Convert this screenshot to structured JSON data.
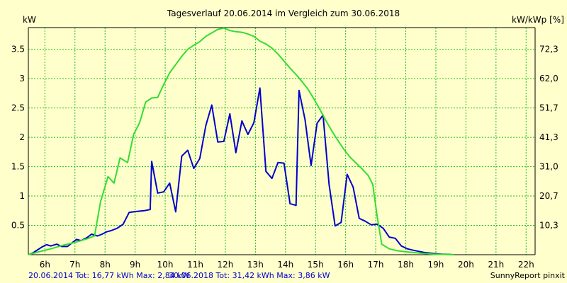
{
  "chart_data": {
    "type": "line",
    "title": "Tagesverlauf 20.06.2014 im Vergleich zum 30.06.2018",
    "ylabel_left": "kW",
    "ylabel_right": "kW/kWp [%]",
    "x_ticks": [
      "6h",
      "7h",
      "8h",
      "9h",
      "10h",
      "11h",
      "12h",
      "13h",
      "14h",
      "15h",
      "16h",
      "17h",
      "18h",
      "19h",
      "20h",
      "21h",
      "22h"
    ],
    "x_tick_values": [
      6,
      7,
      8,
      9,
      10,
      11,
      12,
      13,
      14,
      15,
      16,
      17,
      18,
      19,
      20,
      21,
      22
    ],
    "xlim": [
      5.45,
      22.3
    ],
    "y_ticks": [
      "0.5",
      "1",
      "1.5",
      "2",
      "2.5",
      "3",
      "3.5"
    ],
    "y_tick_values": [
      0.5,
      1,
      1.5,
      2,
      2.5,
      3,
      3.5
    ],
    "y_right_ticks": [
      "10,3",
      "20,7",
      "31,0",
      "41,3",
      "51,7",
      "62,0",
      "72,3"
    ],
    "ylim": [
      0,
      3.87
    ],
    "grid": true,
    "series": [
      {
        "name": "20.06.2014",
        "color": "#0000cc",
        "points": [
          [
            5.45,
            0
          ],
          [
            5.6,
            0.03
          ],
          [
            5.75,
            0.08
          ],
          [
            5.9,
            0.13
          ],
          [
            6.05,
            0.17
          ],
          [
            6.2,
            0.15
          ],
          [
            6.4,
            0.18
          ],
          [
            6.55,
            0.14
          ],
          [
            6.75,
            0.14
          ],
          [
            6.9,
            0.2
          ],
          [
            7.05,
            0.26
          ],
          [
            7.2,
            0.24
          ],
          [
            7.4,
            0.29
          ],
          [
            7.55,
            0.35
          ],
          [
            7.75,
            0.32
          ],
          [
            7.9,
            0.35
          ],
          [
            8.05,
            0.39
          ],
          [
            8.2,
            0.41
          ],
          [
            8.4,
            0.45
          ],
          [
            8.6,
            0.52
          ],
          [
            8.8,
            0.72
          ],
          [
            8.95,
            0.73
          ],
          [
            9.1,
            0.74
          ],
          [
            9.3,
            0.75
          ],
          [
            9.5,
            0.77
          ],
          [
            9.55,
            1.59
          ],
          [
            9.75,
            1.05
          ],
          [
            9.95,
            1.07
          ],
          [
            10.15,
            1.22
          ],
          [
            10.35,
            0.73
          ],
          [
            10.55,
            1.68
          ],
          [
            10.75,
            1.78
          ],
          [
            10.95,
            1.47
          ],
          [
            11.15,
            1.64
          ],
          [
            11.35,
            2.2
          ],
          [
            11.55,
            2.55
          ],
          [
            11.75,
            1.92
          ],
          [
            11.95,
            1.93
          ],
          [
            12.15,
            2.4
          ],
          [
            12.35,
            1.74
          ],
          [
            12.55,
            2.28
          ],
          [
            12.75,
            2.05
          ],
          [
            12.95,
            2.25
          ],
          [
            13.15,
            2.84
          ],
          [
            13.35,
            1.42
          ],
          [
            13.55,
            1.3
          ],
          [
            13.75,
            1.57
          ],
          [
            13.95,
            1.56
          ],
          [
            14.15,
            0.87
          ],
          [
            14.35,
            0.84
          ],
          [
            14.45,
            2.8
          ],
          [
            14.65,
            2.3
          ],
          [
            14.85,
            1.52
          ],
          [
            15.05,
            2.24
          ],
          [
            15.25,
            2.38
          ],
          [
            15.45,
            1.2
          ],
          [
            15.65,
            0.49
          ],
          [
            15.85,
            0.55
          ],
          [
            16.05,
            1.37
          ],
          [
            16.25,
            1.15
          ],
          [
            16.45,
            0.62
          ],
          [
            16.65,
            0.57
          ],
          [
            16.85,
            0.51
          ],
          [
            17.05,
            0.52
          ],
          [
            17.25,
            0.45
          ],
          [
            17.45,
            0.3
          ],
          [
            17.65,
            0.28
          ],
          [
            17.85,
            0.15
          ],
          [
            18.05,
            0.1
          ],
          [
            18.3,
            0.07
          ],
          [
            18.6,
            0.04
          ],
          [
            18.9,
            0.02
          ],
          [
            19.2,
            0.01
          ],
          [
            19.6,
            0.0
          ]
        ]
      },
      {
        "name": "30.06.2018",
        "color": "#33dd33",
        "points": [
          [
            5.45,
            0
          ],
          [
            5.8,
            0.05
          ],
          [
            6.2,
            0.1
          ],
          [
            6.6,
            0.16
          ],
          [
            7.0,
            0.21
          ],
          [
            7.4,
            0.27
          ],
          [
            7.65,
            0.32
          ],
          [
            7.85,
            0.9
          ],
          [
            8.1,
            1.33
          ],
          [
            8.3,
            1.22
          ],
          [
            8.5,
            1.65
          ],
          [
            8.75,
            1.57
          ],
          [
            8.95,
            2.05
          ],
          [
            9.15,
            2.25
          ],
          [
            9.35,
            2.6
          ],
          [
            9.55,
            2.67
          ],
          [
            9.75,
            2.68
          ],
          [
            9.95,
            2.9
          ],
          [
            10.15,
            3.1
          ],
          [
            10.35,
            3.24
          ],
          [
            10.55,
            3.38
          ],
          [
            10.75,
            3.5
          ],
          [
            10.95,
            3.57
          ],
          [
            11.15,
            3.63
          ],
          [
            11.35,
            3.72
          ],
          [
            11.55,
            3.78
          ],
          [
            11.75,
            3.84
          ],
          [
            11.95,
            3.86
          ],
          [
            12.15,
            3.82
          ],
          [
            12.35,
            3.8
          ],
          [
            12.55,
            3.79
          ],
          [
            12.75,
            3.76
          ],
          [
            12.95,
            3.72
          ],
          [
            13.15,
            3.64
          ],
          [
            13.35,
            3.59
          ],
          [
            13.55,
            3.52
          ],
          [
            13.75,
            3.42
          ],
          [
            13.95,
            3.3
          ],
          [
            14.15,
            3.18
          ],
          [
            14.35,
            3.07
          ],
          [
            14.55,
            2.95
          ],
          [
            14.75,
            2.82
          ],
          [
            14.95,
            2.65
          ],
          [
            15.15,
            2.47
          ],
          [
            15.35,
            2.28
          ],
          [
            15.55,
            2.1
          ],
          [
            15.75,
            1.94
          ],
          [
            15.95,
            1.79
          ],
          [
            16.15,
            1.66
          ],
          [
            16.35,
            1.56
          ],
          [
            16.55,
            1.46
          ],
          [
            16.75,
            1.35
          ],
          [
            16.9,
            1.2
          ],
          [
            17.05,
            0.65
          ],
          [
            17.2,
            0.18
          ],
          [
            17.45,
            0.1
          ],
          [
            17.7,
            0.07
          ],
          [
            18.0,
            0.05
          ],
          [
            18.4,
            0.03
          ],
          [
            18.9,
            0.01
          ],
          [
            19.6,
            0.0
          ]
        ]
      }
    ]
  },
  "footer": {
    "series1_text": "20.06.2014 Tot: 16,77 kWh Max: 2,84 kW",
    "series2_text": "30.06.2018 Tot: 31,42 kWh Max: 3,86 kW",
    "credit": "SunnyReport pinxit"
  }
}
